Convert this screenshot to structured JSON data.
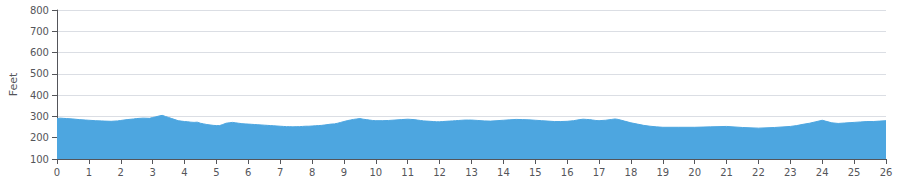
{
  "chart_data": {
    "type": "area",
    "ylabel": "Feet",
    "color": "#4da6e0",
    "xlim": [
      0,
      26
    ],
    "ylim": [
      100,
      800
    ],
    "xticks": [
      0,
      1,
      2,
      3,
      4,
      5,
      6,
      7,
      8,
      9,
      10,
      11,
      12,
      13,
      14,
      15,
      16,
      17,
      18,
      19,
      20,
      21,
      22,
      23,
      24,
      25,
      26
    ],
    "yticks": [
      100,
      200,
      300,
      400,
      500,
      600,
      700,
      800
    ],
    "grid": true,
    "x": [
      0.0,
      0.1,
      0.2,
      0.3,
      0.5,
      0.7,
      0.9,
      1.0,
      1.2,
      1.4,
      1.5,
      1.7,
      1.9,
      2.0,
      2.2,
      2.4,
      2.5,
      2.7,
      2.9,
      3.0,
      3.1,
      3.2,
      3.3,
      3.4,
      3.5,
      3.6,
      3.7,
      3.8,
      3.9,
      4.0,
      4.1,
      4.2,
      4.3,
      4.4,
      4.5,
      4.6,
      4.7,
      4.8,
      4.9,
      5.0,
      5.1,
      5.2,
      5.3,
      5.4,
      5.5,
      5.6,
      5.7,
      5.8,
      5.9,
      6.0,
      6.1,
      6.2,
      6.3,
      6.4,
      6.5,
      6.6,
      6.7,
      6.8,
      6.9,
      7.0,
      7.1,
      7.2,
      7.3,
      7.4,
      7.5,
      7.6,
      7.7,
      7.8,
      7.9,
      8.0,
      8.1,
      8.2,
      8.3,
      8.4,
      8.5,
      8.6,
      8.7,
      8.8,
      8.9,
      9.0,
      9.1,
      9.2,
      9.3,
      9.4,
      9.5,
      9.6,
      9.7,
      9.8,
      9.9,
      10.0,
      10.2,
      10.4,
      10.6,
      10.8,
      11.0,
      11.1,
      11.2,
      11.3,
      11.4,
      11.5,
      11.6,
      11.7,
      11.8,
      11.9,
      12.0,
      12.1,
      12.2,
      12.3,
      12.4,
      12.5,
      12.6,
      12.7,
      12.8,
      12.9,
      13.0,
      13.2,
      13.4,
      13.6,
      13.8,
      14.0,
      14.2,
      14.4,
      14.6,
      14.8,
      15.0,
      15.2,
      15.4,
      15.6,
      15.8,
      16.0,
      16.2,
      16.4,
      16.5,
      16.6,
      16.7,
      16.8,
      16.9,
      17.0,
      17.2,
      17.4,
      17.5,
      17.6,
      17.8,
      18.0,
      18.2,
      18.4,
      18.6,
      18.8,
      19.0,
      19.5,
      20.0,
      20.5,
      21.0,
      21.5,
      22.0,
      22.5,
      23.0,
      23.2,
      23.4,
      23.6,
      23.8,
      24.0,
      24.1,
      24.3,
      24.5,
      24.7,
      24.9,
      25.0,
      25.2,
      25.4,
      25.6,
      25.8,
      26.0
    ],
    "values": [
      290,
      292,
      291,
      290,
      288,
      285,
      283,
      282,
      280,
      279,
      278,
      277,
      279,
      281,
      285,
      288,
      290,
      292,
      291,
      295,
      298,
      302,
      305,
      300,
      295,
      290,
      285,
      280,
      278,
      276,
      275,
      273,
      272,
      273,
      268,
      265,
      262,
      260,
      258,
      257,
      257,
      262,
      268,
      270,
      272,
      270,
      268,
      266,
      265,
      264,
      263,
      262,
      261,
      260,
      259,
      258,
      257,
      256,
      255,
      254,
      253,
      252,
      252,
      251,
      252,
      252,
      253,
      254,
      254,
      255,
      256,
      257,
      258,
      260,
      262,
      264,
      265,
      268,
      272,
      276,
      280,
      283,
      286,
      288,
      290,
      287,
      285,
      283,
      281,
      280,
      280,
      281,
      283,
      285,
      287,
      286,
      285,
      283,
      281,
      279,
      278,
      277,
      276,
      275,
      275,
      276,
      277,
      278,
      279,
      280,
      281,
      282,
      283,
      283,
      283,
      281,
      279,
      278,
      280,
      282,
      284,
      286,
      285,
      284,
      282,
      280,
      278,
      276,
      276,
      277,
      280,
      285,
      287,
      286,
      285,
      283,
      281,
      280,
      282,
      286,
      288,
      286,
      278,
      270,
      264,
      258,
      254,
      251,
      249,
      249,
      249,
      251,
      253,
      248,
      245,
      248,
      253,
      257,
      263,
      268,
      275,
      282,
      278,
      270,
      267,
      269,
      271,
      272,
      274,
      276,
      276,
      278,
      280
    ]
  }
}
